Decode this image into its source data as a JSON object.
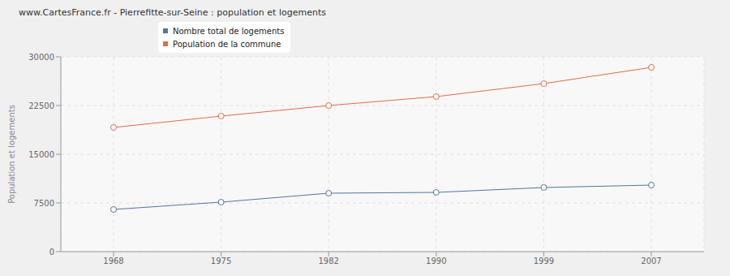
{
  "chart_data": {
    "type": "line",
    "title": "www.CartesFrance.fr - Pierrefitte-sur-Seine : population et logements",
    "y_label": "Population et logements",
    "categories": [
      "1968",
      "1975",
      "1982",
      "1990",
      "1999",
      "2007"
    ],
    "series": [
      {
        "name": "Nombre total de logements",
        "color": "#4f76a0",
        "marker": "circle",
        "values": [
          6500,
          7625,
          9000,
          9125,
          9875,
          10250
        ]
      },
      {
        "name": "Population de la commune",
        "color": "#e06c45",
        "marker": "circle",
        "values": [
          19125,
          20875,
          22500,
          23875,
          25875,
          28375
        ]
      }
    ],
    "ylim": [
      0,
      30000
    ],
    "yticks": [
      0,
      7500,
      15000,
      22500,
      30000
    ],
    "grid": true,
    "legend": "top-left"
  }
}
